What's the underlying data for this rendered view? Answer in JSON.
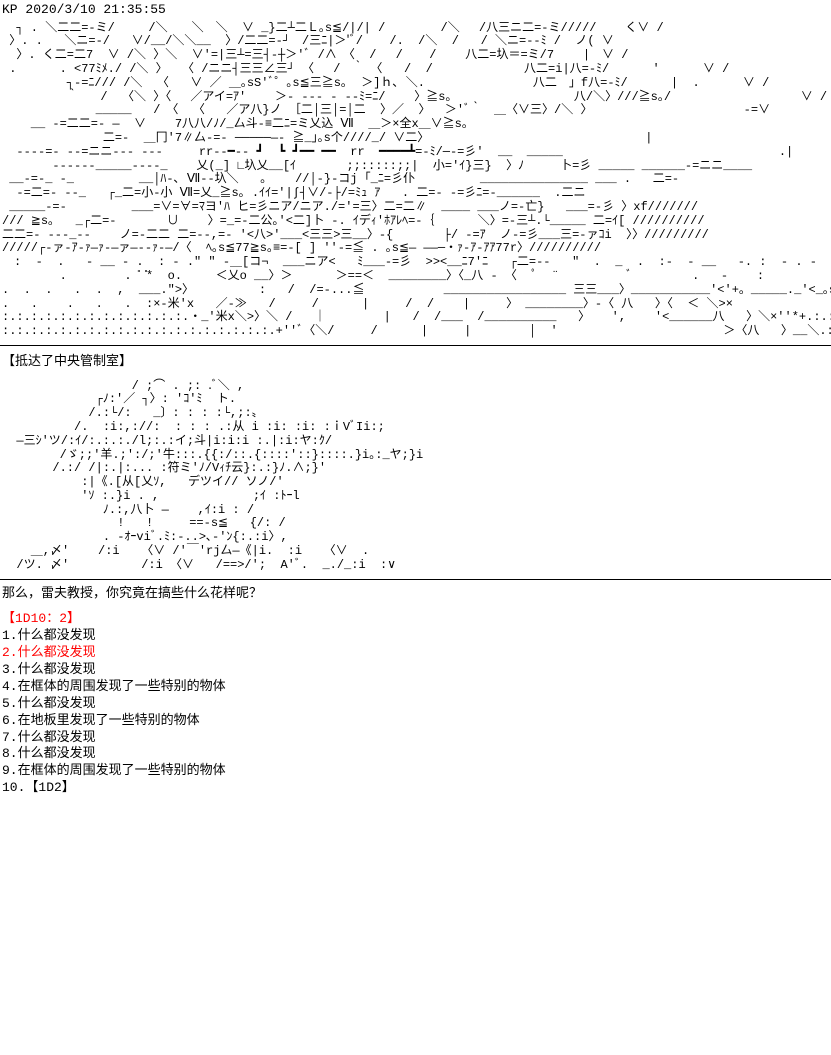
{
  "post": {
    "author": "KP",
    "timestamp": "2020/3/10 21:35:55",
    "ascii_art_1": "  ┐ . ＼二二=-ミ/  　 /＼　　＼　＼  ∨ _}二┴二Ｌ｡s≦/|/| /　　　　 /＼　 /八三ニ二=-ミ/////    く∨ /\n 〉. .   ＼ニ=-/   ∨/__/＼＼__  〉/二二=-┘　/三ﾆ|＞'ﾞ/ 　 /.  /＼  /   / ＼ニ=--ﾐ /  ノ( ∨\n  〉. く二=二7  ∨ /＼ 〉＼  ∨'=|三┴=三┤-┼＞'ﾞ /∧　〈  /　 /　  /    八二=圦＝=ミ/7    |　∨ /\n .      . <77ﾐﾒ./ /＼ 〉  〈 /ニニ┤三三∠三┘ 〈　 /　｀　〈   /  /　           八二=i|八=-ﾐ/      '      ∨ /\n         ┐-=ﾆ/// /＼  〈   ∨ ／ ＿｡sS'ﾞ゜｡s≦三≧s｡  ＞]ｈ､ ＼.               八二　」f八=-ﾐ/      |  .      ∨ /\n         ｀   /  〈＼ 〉〈　 ／アイ=ｱ'    ＞- --- - --ﾐ=ﾆ/    〉≧s｡                 八/＼〉///≧s｡/                  ∨ /\n             _____   /　〈  〈   ／ア八}ノ ［二│三│=│二  〉／  〉  ＞'ﾞ｀　＿〈∨三〉/＼ 〉                     -=∨\n    __ -=二二=- ―  ∨    7八八/ﾉ/_厶斗-≡二ﾆ=ミ乂込 Ⅶ  ＿＞×全x＿∨≧s｡\n              二=-  ＿冂'7∥厶-=- ─────―- ≧_｣｡s个////_/ ∨二〉                              |\n  ----=- --=ニニ--- ---     rr--━-- ┛  ┗ ┛━━ ━━  rr  ━━━━┻=-ﾐ/─-=彡'  __  _____                              .|\n       ------_____----_    乂(_] ∟圦乂__[ｲ       ;;:::::;;|  小='ｲ}三}  〉ﾉ     卜=彡 _____ ______-=ニニ____\n __-=-_ -_         __│ﾊ-､ Ⅶ--圦＼   ｡    //│-}-コj ｢_ﾆ=彡仆         _______________ ___ .   二=-\n  -=二=- --_   ┌_二=小-小 Ⅶ=乂_≧s｡ .ｲｲ='|∫┤∨/-├/=ﾐｭ ｱ   . 二=- -=彡ﾆ=-______  .二ニ\n _____-=-         ___=∨=∀=ﾏヨ'ﾊ ヒ=彡ニア/ニア./='=三〉二=二∥  ____ ___ノ=-亡}   ___=-彡 〉xf///////\n/// ≧s｡   _┌二=-       ∪    〉=_=-二公｡'<二]卜 -. ｲデｨ'ﾎｱﾚﾍ=-｛      ＼〉=-三┴.└_____ 二=ｲ[ //////////\n二二=- ---_--    ノ=-二二 二=--,=- '<八>'___<三三>三__〉-{       ├/ -=ｱ  ノ-=彡___三=-ァｺi  〉〉/////////\n/////┌-ァ-ｱ-ｧ―ｧ-―ァ―--ｧ-―/〈  ﾍ｡s≦77≧s｡≡=-[ ] ''-=≦ . ｡s≦― ――─・ｧ-ｱ-ｱｱ77r〉//////////\n　:  -  .   - __ - .  : - .\" \" -＿[コ¬  ___ニア<   ﾐ___-=彡  >><__ﾆ7'ﾆ   ┌二=--   \"  .  _  .  :-  - __   -. :  - . -  :    -\n        .        . ̎ ̎*  o.  　 ＜乂o __〉＞      ＞==＜  ________〉〈_八 - 〈  ﾟ  ¨ 　　　　　ﾞ　　     .   -    :\n.  .  .   .  .  ,  ___.\">〉         :   /  /=-...≦           _________________ 三三___〉___________'<'+。_____._'<_｡s≦\n.   .    .   .   .  :×-米'x   ／-≫   /     /      |     /  /    |     〉 ________〉-〈 八   〉〈  ＜ ＼>×\n:.:.:.:.:.:.:.:.:.:.:.:.:.・_'米x＼>〉＼ /   ｜        |   /  /___  /__________   〉   ',    '<______八   〉＼×''*+.:.:.:.:.:.:.:.:.:.\n:.:.:.:.:.:.:.:.:.:.:.:.:.:.:.:.:.:.:.+''ﾞ〈＼/     /      |     |        │  '                       ＞〈八   〉__＼.:.:.:.:.:.:.:.:.:.:.:.:.:.:.:.:.:.:.:.:.:.「|",
    "narration_1": "【抵达了中央管制室】",
    "ascii_art_2": "                  / ;⌒ . ;: .ﾞ＼ ,\n             ┌ﾉ:'／ ┐〉: 'ｺ'ﾐ  ト.\n            /.:└/:   _〕: : : :└,;:〟\n          /.  :i:,://:  : : : .:从 i :i: :i: :ｉVﾞIi:;\n  ―三ｼ'ツ/:ｲ/:.:.:./l;:.:イ;斗|i:i:i :.|:i:ヤ:ｸ/\n        /ゞ;;'羊.;':/;'牛:::.{{:/::.{::::'::}::::.}i｡:_ヤ;}i\n       /.:/ /|:.|:... :符ミ'ﾉ/Vｨﾁ云}:.:}ﾉ.∧;}'\n           :|《.[从[乂ｿ,   デツイ// ソノ/'\n           'ｿ :.}i . ,             ;ｲ :ﾄｰl\n              ﾉ.:,八卜 ―    ,ｲ:i : /\n                !   !     ==-s≦   {/: /\n              . -ｵｰviﾞ.ﾐ:-..>､-'ﾝ{:.:i〉,\n    ＿,〆'    /:i   〈∨ /'￣'rj厶―《|i.  :i   〈∨  .\n  /ツ. 〆'          /:i 〈∨   /==>/';  A'ﾞ.  _./_:i  :∨",
    "dialogue": "那么，雷夫教授，你究竟在搞些什么花样呢？",
    "roll": {
      "header": "【1D10：2】",
      "items": [
        {
          "n": "1",
          "text": ".什么都没发现",
          "highlight": false
        },
        {
          "n": "2",
          "text": ".什么都没发现",
          "highlight": true
        },
        {
          "n": "3",
          "text": ".什么都没发现",
          "highlight": false
        },
        {
          "n": "4",
          "text": ".在框体的周围发现了一些特别的物体",
          "highlight": false
        },
        {
          "n": "5",
          "text": ".什么都没发现",
          "highlight": false
        },
        {
          "n": "6",
          "text": ".在地板里发现了一些特别的物体",
          "highlight": false
        },
        {
          "n": "7",
          "text": ".什么都没发现",
          "highlight": false
        },
        {
          "n": "8",
          "text": ".什么都没发现",
          "highlight": false
        },
        {
          "n": "9",
          "text": ".在框体的周围发现了一些特别的物体",
          "highlight": false
        },
        {
          "n": "10",
          "text": ".【1D2】",
          "highlight": false
        }
      ]
    }
  },
  "colors": {
    "highlight": "#ff0000",
    "text": "#000000",
    "background": "#ffffff"
  }
}
